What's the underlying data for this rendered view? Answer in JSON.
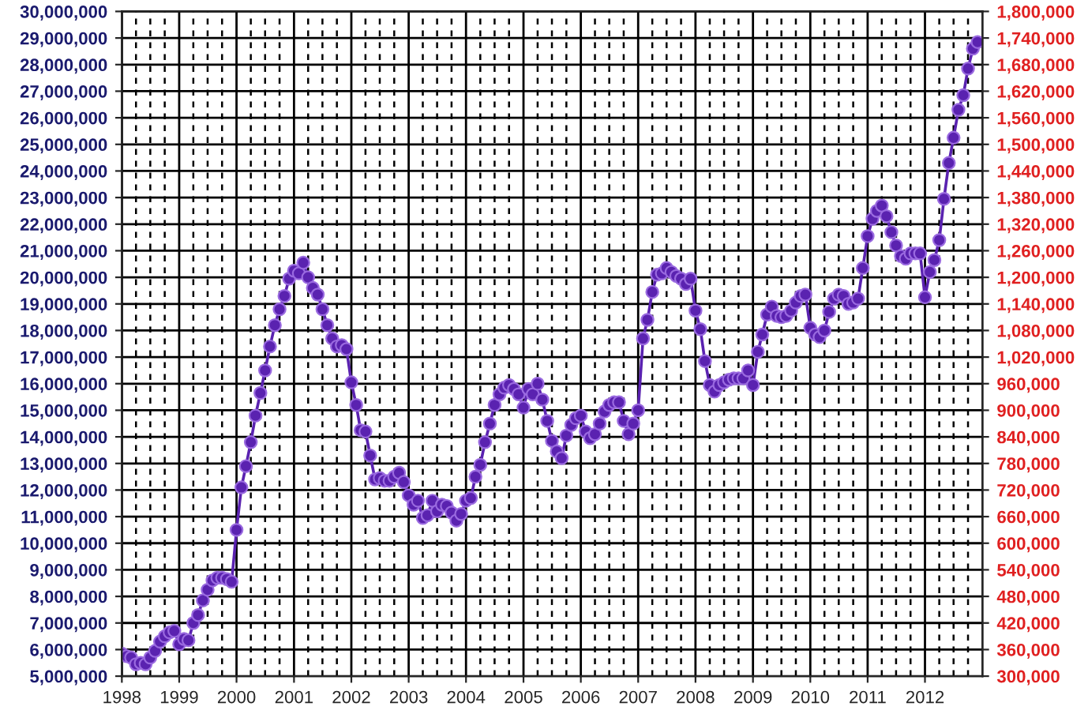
{
  "chart_data": {
    "type": "line",
    "x": [
      "1998-01",
      "1998-02",
      "1998-03",
      "1998-04",
      "1998-05",
      "1998-06",
      "1998-07",
      "1998-08",
      "1998-09",
      "1998-10",
      "1998-11",
      "1998-12",
      "1999-01",
      "1999-02",
      "1999-03",
      "1999-04",
      "1999-05",
      "1999-06",
      "1999-07",
      "1999-08",
      "1999-09",
      "1999-10",
      "1999-11",
      "1999-12",
      "2000-01",
      "2000-02",
      "2000-03",
      "2000-04",
      "2000-05",
      "2000-06",
      "2000-07",
      "2000-08",
      "2000-09",
      "2000-10",
      "2000-11",
      "2000-12",
      "2001-01",
      "2001-02",
      "2001-03",
      "2001-04",
      "2001-05",
      "2001-06",
      "2001-07",
      "2001-08",
      "2001-09",
      "2001-10",
      "2001-11",
      "2001-12",
      "2002-01",
      "2002-02",
      "2002-03",
      "2002-04",
      "2002-05",
      "2002-06",
      "2002-07",
      "2002-08",
      "2002-09",
      "2002-10",
      "2002-11",
      "2002-12",
      "2003-01",
      "2003-02",
      "2003-03",
      "2003-04",
      "2003-05",
      "2003-06",
      "2003-07",
      "2003-08",
      "2003-09",
      "2003-10",
      "2003-11",
      "2003-12",
      "2004-01",
      "2004-02",
      "2004-03",
      "2004-04",
      "2004-05",
      "2004-06",
      "2004-07",
      "2004-08",
      "2004-09",
      "2004-10",
      "2004-11",
      "2004-12",
      "2005-01",
      "2005-02",
      "2005-03",
      "2005-04",
      "2005-05",
      "2005-06",
      "2005-07",
      "2005-08",
      "2005-09",
      "2005-10",
      "2005-11",
      "2005-12",
      "2006-01",
      "2006-02",
      "2006-03",
      "2006-04",
      "2006-05",
      "2006-06",
      "2006-07",
      "2006-08",
      "2006-09",
      "2006-10",
      "2006-11",
      "2006-12",
      "2007-01",
      "2007-02",
      "2007-03",
      "2007-04",
      "2007-05",
      "2007-06",
      "2007-07",
      "2007-08",
      "2007-09",
      "2007-10",
      "2007-11",
      "2007-12",
      "2008-01",
      "2008-02",
      "2008-03",
      "2008-04",
      "2008-05",
      "2008-06",
      "2008-07",
      "2008-08",
      "2008-09",
      "2008-10",
      "2008-11",
      "2008-12",
      "2009-01",
      "2009-02",
      "2009-03",
      "2009-04",
      "2009-05",
      "2009-06",
      "2009-07",
      "2009-08",
      "2009-09",
      "2009-10",
      "2009-11",
      "2009-12",
      "2010-01",
      "2010-02",
      "2010-03",
      "2010-04",
      "2010-05",
      "2010-06",
      "2010-07",
      "2010-08",
      "2010-09",
      "2010-10",
      "2010-11",
      "2010-12",
      "2011-01",
      "2011-02",
      "2011-03",
      "2011-04",
      "2011-05",
      "2011-06",
      "2011-07",
      "2011-08",
      "2011-09",
      "2011-10",
      "2011-11",
      "2011-12",
      "2012-01",
      "2012-02",
      "2012-03",
      "2012-04",
      "2012-05",
      "2012-06",
      "2012-07",
      "2012-08",
      "2012-09",
      "2012-10",
      "2012-11",
      "2012-12"
    ],
    "series": [
      {
        "color": "#5a22b0",
        "values": [
          5850000,
          5750000,
          5700000,
          5450000,
          5500000,
          5450000,
          5700000,
          5950000,
          6300000,
          6500000,
          6650000,
          6700000,
          6200000,
          6400000,
          6350000,
          7000000,
          7300000,
          7850000,
          8250000,
          8600000,
          8700000,
          8700000,
          8650000,
          8550000,
          10500000,
          12100000,
          12900000,
          13800000,
          14800000,
          15650000,
          16500000,
          17400000,
          18200000,
          18800000,
          19300000,
          19950000,
          20250000,
          20150000,
          20550000,
          20000000,
          19600000,
          19350000,
          18800000,
          18200000,
          17700000,
          17400000,
          17450000,
          17300000,
          16050000,
          15200000,
          14250000,
          14200000,
          13300000,
          12400000,
          12450000,
          12350000,
          12350000,
          12500000,
          12650000,
          12300000,
          11800000,
          11450000,
          11600000,
          10950000,
          11050000,
          11600000,
          11200000,
          11450000,
          11400000,
          11150000,
          10850000,
          11100000,
          11600000,
          11700000,
          12500000,
          12950000,
          13800000,
          14500000,
          15200000,
          15600000,
          15850000,
          15950000,
          15800000,
          15600000,
          15100000,
          15800000,
          15600000,
          16000000,
          15400000,
          14600000,
          13850000,
          13450000,
          13200000,
          14050000,
          14450000,
          14700000,
          14800000,
          14200000,
          13950000,
          14100000,
          14500000,
          14950000,
          15200000,
          15300000,
          15300000,
          14600000,
          14100000,
          14500000,
          15000000,
          17700000,
          18400000,
          19450000,
          20100000,
          20150000,
          20350000,
          20200000,
          20050000,
          19950000,
          19750000,
          19950000,
          18750000,
          18050000,
          16850000,
          15950000,
          15700000,
          15950000,
          16050000,
          16150000,
          16200000,
          16200000,
          16200000,
          16500000,
          15950000,
          17200000,
          17850000,
          18600000,
          18900000,
          18550000,
          18500000,
          18550000,
          18750000,
          19050000,
          19300000,
          19350000,
          18100000,
          17850000,
          17750000,
          18000000,
          18700000,
          19200000,
          19350000,
          19300000,
          19000000,
          19050000,
          19200000,
          20350000,
          21550000,
          22200000,
          22500000,
          22700000,
          22300000,
          21700000,
          21200000,
          20800000,
          20700000,
          20900000,
          20900000,
          20900000,
          19250000,
          20200000,
          20650000,
          21400000,
          22950000,
          24300000,
          25250000,
          26300000,
          26850000,
          27850000,
          28600000,
          28850000
        ]
      }
    ],
    "xlim": [
      "1998-01",
      "2013-01"
    ],
    "xticks": [
      {
        "value": "1998-01",
        "label": "1998"
      },
      {
        "value": "1999-01",
        "label": "1999"
      },
      {
        "value": "2000-01",
        "label": "2000"
      },
      {
        "value": "2001-01",
        "label": "2001"
      },
      {
        "value": "2002-01",
        "label": "2002"
      },
      {
        "value": "2003-01",
        "label": "2003"
      },
      {
        "value": "2004-01",
        "label": "2004"
      },
      {
        "value": "2005-01",
        "label": "2005"
      },
      {
        "value": "2006-01",
        "label": "2006"
      },
      {
        "value": "2007-01",
        "label": "2007"
      },
      {
        "value": "2008-01",
        "label": "2008"
      },
      {
        "value": "2009-01",
        "label": "2009"
      },
      {
        "value": "2010-01",
        "label": "2010"
      },
      {
        "value": "2011-01",
        "label": "2011"
      },
      {
        "value": "2012-01",
        "label": "2012"
      }
    ],
    "ylim": [
      5000000,
      30000000
    ],
    "yticks": [
      {
        "value": 5000000,
        "label": "5,000,000"
      },
      {
        "value": 6000000,
        "label": "6,000,000"
      },
      {
        "value": 7000000,
        "label": "7,000,000"
      },
      {
        "value": 8000000,
        "label": "8,000,000"
      },
      {
        "value": 9000000,
        "label": "9,000,000"
      },
      {
        "value": 10000000,
        "label": "10,000,000"
      },
      {
        "value": 11000000,
        "label": "11,000,000"
      },
      {
        "value": 12000000,
        "label": "12,000,000"
      },
      {
        "value": 13000000,
        "label": "13,000,000"
      },
      {
        "value": 14000000,
        "label": "14,000,000"
      },
      {
        "value": 15000000,
        "label": "15,000,000"
      },
      {
        "value": 16000000,
        "label": "16,000,000"
      },
      {
        "value": 17000000,
        "label": "17,000,000"
      },
      {
        "value": 18000000,
        "label": "18,000,000"
      },
      {
        "value": 19000000,
        "label": "19,000,000"
      },
      {
        "value": 20000000,
        "label": "20,000,000"
      },
      {
        "value": 21000000,
        "label": "21,000,000"
      },
      {
        "value": 22000000,
        "label": "22,000,000"
      },
      {
        "value": 23000000,
        "label": "23,000,000"
      },
      {
        "value": 24000000,
        "label": "24,000,000"
      },
      {
        "value": 25000000,
        "label": "25,000,000"
      },
      {
        "value": 26000000,
        "label": "26,000,000"
      },
      {
        "value": 27000000,
        "label": "27,000,000"
      },
      {
        "value": 28000000,
        "label": "28,000,000"
      },
      {
        "value": 29000000,
        "label": "29,000,000"
      },
      {
        "value": 30000000,
        "label": "30,000,000"
      }
    ],
    "y2lim": [
      300000,
      1800000
    ],
    "y2ticks": [
      {
        "value": 300000,
        "label": "300,000"
      },
      {
        "value": 360000,
        "label": "360,000"
      },
      {
        "value": 420000,
        "label": "420,000"
      },
      {
        "value": 480000,
        "label": "480,000"
      },
      {
        "value": 540000,
        "label": "540,000"
      },
      {
        "value": 600000,
        "label": "600,000"
      },
      {
        "value": 660000,
        "label": "660,000"
      },
      {
        "value": 720000,
        "label": "720,000"
      },
      {
        "value": 780000,
        "label": "780,000"
      },
      {
        "value": 840000,
        "label": "840,000"
      },
      {
        "value": 900000,
        "label": "900,000"
      },
      {
        "value": 960000,
        "label": "960,000"
      },
      {
        "value": 1020000,
        "label": "1,020,000"
      },
      {
        "value": 1080000,
        "label": "1,080,000"
      },
      {
        "value": 1140000,
        "label": "1,140,000"
      },
      {
        "value": 1200000,
        "label": "1,200,000"
      },
      {
        "value": 1260000,
        "label": "1,260,000"
      },
      {
        "value": 1320000,
        "label": "1,320,000"
      },
      {
        "value": 1380000,
        "label": "1,380,000"
      },
      {
        "value": 1440000,
        "label": "1,440,000"
      },
      {
        "value": 1500000,
        "label": "1,500,000"
      },
      {
        "value": 1560000,
        "label": "1,560,000"
      },
      {
        "value": 1620000,
        "label": "1,620,000"
      },
      {
        "value": 1680000,
        "label": "1,680,000"
      },
      {
        "value": 1740000,
        "label": "1,740,000"
      },
      {
        "value": 1800000,
        "label": "1,800,000"
      }
    ],
    "grid": true,
    "marker": "circle",
    "line_style": "solid",
    "legend": false
  }
}
